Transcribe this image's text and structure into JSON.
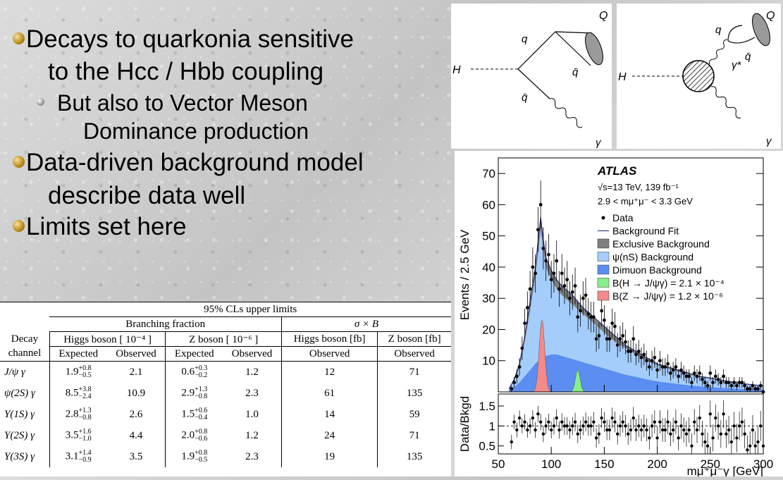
{
  "bullets": [
    {
      "line1": "Decays to quarkonia  sensitive",
      "line2": "to the Hcc / Hbb coupling"
    },
    {
      "line1": "But also to Vector Meson",
      "line2": "Dominance production"
    },
    {
      "line1": "Data-driven background model",
      "line2": "describe data well"
    },
    {
      "line1": "Limits set here"
    }
  ],
  "diagram1": {
    "H": "H",
    "q_top": "q",
    "qbar_right": "q̄",
    "qbar_left": "q̄",
    "Q": "Q",
    "gamma": "γ"
  },
  "diagram2": {
    "H": "H",
    "q": "q",
    "qbar": "q̄",
    "gamma_star": "γ*",
    "Q": "Q",
    "gamma": "γ"
  },
  "table": {
    "title": "95% CLs upper limits",
    "group_bf": "Branching fraction",
    "group_xs": "σ × B",
    "col_decay": "Decay",
    "col_channel": "channel",
    "col_higgs_bf": "Higgs boson [ 10⁻⁴ ]",
    "col_z_bf": "Z boson [ 10⁻⁶ ]",
    "col_higgs_xs": "Higgs boson [fb]",
    "col_z_xs": "Z boson [fb]",
    "sub_expected": "Expected",
    "sub_observed": "Observed",
    "rows": [
      {
        "channel": "J/ψ γ",
        "h_exp": "1.9",
        "h_exp_up": "+0.8",
        "h_exp_dn": "−0.5",
        "h_obs": "2.1",
        "z_exp": "0.6",
        "z_exp_up": "+0.3",
        "z_exp_dn": "−0.2",
        "z_obs": "1.2",
        "h_xs": "12",
        "z_xs": "71"
      },
      {
        "channel": "ψ(2S) γ",
        "h_exp": "8.5",
        "h_exp_up": "+3.8",
        "h_exp_dn": "−2.4",
        "h_obs": "10.9",
        "z_exp": "2.9",
        "z_exp_up": "+1.3",
        "z_exp_dn": "−0.8",
        "z_obs": "2.3",
        "h_xs": "61",
        "z_xs": "135"
      },
      {
        "channel": "Υ(1S) γ",
        "h_exp": "2.8",
        "h_exp_up": "+1.3",
        "h_exp_dn": "−0.8",
        "h_obs": "2.6",
        "z_exp": "1.5",
        "z_exp_up": "+0.6",
        "z_exp_dn": "−0.4",
        "z_obs": "1.0",
        "h_xs": "14",
        "z_xs": "59"
      },
      {
        "channel": "Υ(2S) γ",
        "h_exp": "3.5",
        "h_exp_up": "+1.6",
        "h_exp_dn": "−1.0",
        "h_obs": "4.4",
        "z_exp": "2.0",
        "z_exp_up": "+0.8",
        "z_exp_dn": "−0.6",
        "z_obs": "1.2",
        "h_xs": "24",
        "z_xs": "71"
      },
      {
        "channel": "Υ(3S) γ",
        "h_exp": "3.1",
        "h_exp_up": "+1.4",
        "h_exp_dn": "−0.9",
        "h_obs": "3.5",
        "z_exp": "1.9",
        "z_exp_up": "+0.8",
        "z_exp_dn": "−0.5",
        "z_obs": "2.3",
        "h_xs": "19",
        "z_xs": "135"
      }
    ]
  },
  "chart_data": {
    "type": "histogram",
    "experiment": "ATLAS",
    "energy_text": "√s=13 TeV, 139 fb⁻¹",
    "mass_window": "2.9 < mμ⁺μ⁻ < 3.3 GeV",
    "ylabel": "Events / 2.5 GeV",
    "xlabel": "mμ⁺μ⁻γ [GeV]",
    "ratio_ylabel": "Data/Bkgd",
    "xlim": [
      50,
      300
    ],
    "ylim": [
      0,
      75
    ],
    "ratio_ylim": [
      0.3,
      1.8
    ],
    "x_ticks": [
      "50",
      "100",
      "150",
      "200",
      "250",
      "300"
    ],
    "y_ticks": [
      "10",
      "20",
      "30",
      "40",
      "50",
      "60",
      "70"
    ],
    "ratio_ticks": [
      "0.5",
      "1",
      "1.5"
    ],
    "legend": [
      {
        "label": "Data",
        "kind": "marker",
        "color": "#000000"
      },
      {
        "label": "Background Fit",
        "kind": "line",
        "color": "#1a237e"
      },
      {
        "label": "Exclusive Background",
        "kind": "box",
        "color": "#7f7f7f"
      },
      {
        "label": "ψ(nS) Background",
        "kind": "box",
        "color": "#a4cdfc"
      },
      {
        "label": "Dimuon Background",
        "kind": "box",
        "color": "#5b8ef0"
      },
      {
        "label": "B(H → J/ψγ) = 2.1 × 10⁻⁴",
        "kind": "box",
        "color": "#86f08a"
      },
      {
        "label": "B(Z → J/ψγ) = 1.2 × 10⁻⁶",
        "kind": "box",
        "color": "#f48a8a"
      }
    ],
    "data_x": [
      62.5,
      65,
      67.5,
      70,
      72.5,
      75,
      77.5,
      80,
      82.5,
      85,
      87.5,
      90,
      92.5,
      95,
      97.5,
      100,
      102.5,
      105,
      107.5,
      110,
      112.5,
      115,
      117.5,
      120,
      122.5,
      125,
      127.5,
      130,
      132.5,
      135,
      137.5,
      140,
      142.5,
      145,
      147.5,
      150,
      152.5,
      155,
      157.5,
      160,
      162.5,
      165,
      167.5,
      170,
      172.5,
      175,
      177.5,
      180,
      182.5,
      185,
      187.5,
      190,
      192.5,
      195,
      197.5,
      200,
      202.5,
      205,
      207.5,
      210,
      212.5,
      215,
      217.5,
      220,
      222.5,
      225,
      227.5,
      230,
      232.5,
      235,
      237.5,
      240,
      242.5,
      245,
      247.5,
      250,
      252.5,
      255,
      257.5,
      260,
      262.5,
      265,
      267.5,
      270,
      272.5,
      275,
      277.5,
      280,
      282.5,
      285,
      287.5,
      290,
      292.5,
      295,
      297.5,
      300
    ],
    "data_y": [
      1,
      3,
      5,
      8,
      14,
      22,
      27,
      33,
      40,
      38,
      52,
      60,
      46,
      42,
      44,
      36,
      38,
      42,
      33,
      38,
      34,
      36,
      30,
      32,
      34,
      24,
      26,
      30,
      31,
      25,
      24,
      24,
      17,
      18,
      26,
      23,
      17,
      17,
      22,
      21,
      15,
      17,
      18,
      16,
      13,
      13,
      17,
      12,
      13,
      11,
      12,
      10,
      8,
      10,
      11,
      7,
      10,
      8,
      8,
      9,
      6,
      7,
      8,
      5,
      7,
      6,
      5,
      5,
      3,
      6,
      5,
      6,
      4,
      3,
      2,
      6,
      3,
      5,
      4,
      3,
      5,
      3,
      3,
      2,
      3,
      2,
      3,
      3,
      2,
      1,
      1,
      2,
      1,
      1,
      2,
      0
    ],
    "ratio_y": [
      0.6,
      1.1,
      0.9,
      1.2,
      1.0,
      1.1,
      0.9,
      1.0,
      1.2,
      0.9,
      1.3,
      1.1,
      0.8,
      1.0,
      1.1,
      0.9,
      1.0,
      1.2,
      0.9,
      1.1,
      1.0,
      1.0,
      0.9,
      1.0,
      1.1,
      0.8,
      0.9,
      1.0,
      1.1,
      1.0,
      1.0,
      1.1,
      0.7,
      0.8,
      1.2,
      1.1,
      0.9,
      0.9,
      1.2,
      1.1,
      0.8,
      1.0,
      1.1,
      1.0,
      0.8,
      0.9,
      1.2,
      0.9,
      1.0,
      0.9,
      1.0,
      0.9,
      0.7,
      1.0,
      1.1,
      0.7,
      1.1,
      0.9,
      0.9,
      1.1,
      0.8,
      0.9,
      1.1,
      0.7,
      1.0,
      0.9,
      0.8,
      0.9,
      0.5,
      1.1,
      0.9,
      1.2,
      0.8,
      0.6,
      0.5,
      1.3,
      0.7,
      1.2,
      1.0,
      0.8,
      1.3,
      0.8,
      0.9,
      0.6,
      1.0,
      0.7,
      1.0,
      1.1,
      0.8,
      0.4,
      0.5,
      0.9,
      0.5,
      0.6,
      1.0,
      0.5
    ],
    "bkg_x": [
      60,
      65,
      70,
      75,
      80,
      85,
      88,
      90,
      92,
      95,
      100,
      105,
      110,
      120,
      130,
      140,
      150,
      160,
      170,
      180,
      190,
      200,
      210,
      220,
      230,
      240,
      250,
      260,
      270,
      280,
      290,
      300
    ],
    "exclusive_top": [
      1,
      4,
      9,
      18,
      29,
      40,
      50,
      56,
      50,
      43,
      39,
      36,
      34,
      31,
      27,
      24,
      21,
      18,
      15,
      13,
      11,
      9,
      8,
      7,
      6,
      5,
      4.5,
      3.8,
      3.2,
      2.7,
      2.3,
      2
    ],
    "psi_top": [
      1,
      3.5,
      8,
      16,
      26,
      37,
      46,
      52,
      47,
      40,
      36,
      33,
      31,
      28,
      25,
      22,
      19,
      16,
      14,
      12,
      10,
      8.5,
      7.5,
      6.5,
      5.5,
      4.7,
      4.2,
      3.5,
      3,
      2.5,
      2.1,
      1.8
    ],
    "dimuon_top": [
      0.5,
      1.5,
      3,
      5,
      7,
      9,
      10,
      10.5,
      11,
      11.5,
      12,
      12,
      11.5,
      10.5,
      9.5,
      8.5,
      7.5,
      6.5,
      5.5,
      4.8,
      4,
      3.4,
      2.9,
      2.5,
      2.1,
      1.8,
      1.5,
      1.3,
      1.1,
      0.9,
      0.8,
      0.7
    ],
    "z_peak": {
      "center": 91.2,
      "height": 23,
      "width": 2.6
    },
    "h_peak": {
      "center": 125,
      "height": 7,
      "width": 2.2
    }
  }
}
